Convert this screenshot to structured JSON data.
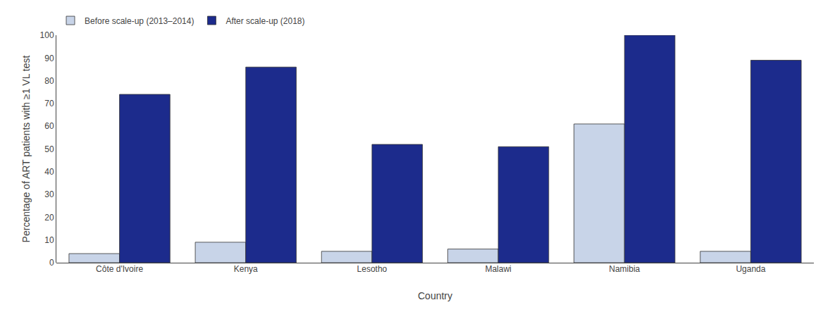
{
  "chart_data": {
    "type": "bar",
    "xlabel": "Country",
    "ylabel": "Percentage of ART patients with ≥1 VL test",
    "categories": [
      "Côte d'Ivoire",
      "Kenya",
      "Lesotho",
      "Malawi",
      "Namibia",
      "Uganda"
    ],
    "series": [
      {
        "name": "Before scale-up (2013–2014)",
        "color": "#c8d4e8",
        "values": [
          4,
          9,
          5,
          6,
          61,
          5
        ]
      },
      {
        "name": "After scale-up (2018)",
        "color": "#1c2b8c",
        "values": [
          74,
          86,
          52,
          51,
          100,
          89
        ]
      }
    ],
    "ylim": [
      0,
      100
    ],
    "yticks": [
      0,
      10,
      20,
      30,
      40,
      50,
      60,
      70,
      80,
      90,
      100
    ],
    "grid": false,
    "legend": "upper left"
  }
}
